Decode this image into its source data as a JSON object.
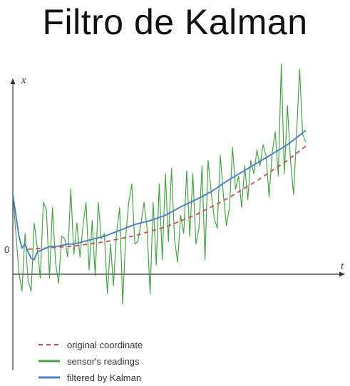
{
  "title": "Filtro de Kalman",
  "chart_data": {
    "type": "line",
    "xlabel": "t",
    "ylabel": "x",
    "y_tick_labels": [
      {
        "value": 0,
        "label": "0"
      }
    ],
    "xlim": [
      0,
      100
    ],
    "ylim": [
      -3,
      6
    ],
    "grid": false,
    "legend_position": "bottom-left",
    "series": [
      {
        "name": "original coordinate",
        "color": "#c0504d",
        "style": "dashed",
        "x": [
          5,
          10,
          20,
          30,
          40,
          50,
          60,
          70,
          80,
          90,
          96
        ],
        "y": [
          0,
          0.04,
          0.12,
          0.28,
          0.52,
          0.85,
          1.32,
          1.92,
          2.62,
          3.4,
          3.95
        ]
      },
      {
        "name": "sensor's readings",
        "color": "#4aa04a",
        "style": "solid",
        "x": [
          0,
          1,
          2,
          3,
          4,
          5,
          6,
          7,
          8,
          9,
          10,
          11,
          12,
          13,
          14,
          15,
          16,
          17,
          18,
          19,
          20,
          21,
          22,
          23,
          24,
          25,
          26,
          27,
          28,
          29,
          30,
          31,
          32,
          33,
          34,
          35,
          36,
          37,
          38,
          39,
          40,
          41,
          42,
          43,
          44,
          45,
          46,
          47,
          48,
          49,
          50,
          51,
          52,
          53,
          54,
          55,
          56,
          57,
          58,
          59,
          60,
          61,
          62,
          63,
          64,
          65,
          66,
          67,
          68,
          69,
          70,
          71,
          72,
          73,
          74,
          75,
          76,
          77,
          78,
          79,
          80,
          81,
          82,
          83,
          84,
          85,
          86,
          87,
          88,
          89,
          90,
          91,
          92,
          93,
          94,
          95,
          96
        ],
        "y": [
          2.1,
          0.6,
          -0.9,
          -1.6,
          0.6,
          -1.2,
          -1.6,
          1.0,
          0.1,
          -1.1,
          1.8,
          1.5,
          -1.1,
          1.6,
          -0.5,
          -1.3,
          0.5,
          0.4,
          -0.3,
          2.3,
          -0.2,
          1.0,
          -0.3,
          0.9,
          1.8,
          -0.8,
          1.1,
          -1.0,
          1.8,
          0.4,
          0.6,
          -1.7,
          0.2,
          -1.4,
          0.6,
          1.6,
          -2.1,
          0.5,
          1.8,
          2.5,
          0.2,
          0.3,
          1.0,
          1.8,
          0.8,
          -1.7,
          1.8,
          -0.6,
          2.5,
          -0.4,
          2.9,
          0.3,
          3.1,
          0.4,
          -0.5,
          1.3,
          0.6,
          3.0,
          0.5,
          2.9,
          0.2,
          0.8,
          3.2,
          -0.4,
          3.4,
          2.2,
          1.2,
          0.8,
          3.6,
          2.1,
          0.9,
          1.6,
          3.9,
          2.3,
          2.8,
          1.6,
          3.2,
          1.9,
          3.4,
          2.9,
          3.8,
          3.2,
          4.0,
          3.6,
          2.0,
          3.7,
          4.5,
          2.8,
          7.1,
          2.9,
          5.5,
          3.4,
          2.1,
          4.4,
          6.9,
          4.4,
          4.1
        ]
      },
      {
        "name": "filtered by Kalman",
        "color": "#4f81bd",
        "style": "solid",
        "x": [
          0,
          1,
          2,
          3,
          4,
          5,
          6,
          7,
          8,
          10,
          12,
          15,
          18,
          20,
          25,
          30,
          35,
          40,
          45,
          50,
          55,
          60,
          65,
          70,
          75,
          80,
          85,
          90,
          96
        ],
        "y": [
          2.1,
          1.3,
          0.5,
          0.05,
          0.2,
          -0.1,
          -0.35,
          -0.4,
          -0.1,
          0.0,
          0.1,
          0.12,
          0.2,
          0.2,
          0.35,
          0.5,
          0.72,
          0.95,
          1.1,
          1.3,
          1.62,
          1.9,
          2.2,
          2.6,
          2.95,
          3.3,
          3.65,
          4.0,
          4.55
        ]
      }
    ]
  }
}
